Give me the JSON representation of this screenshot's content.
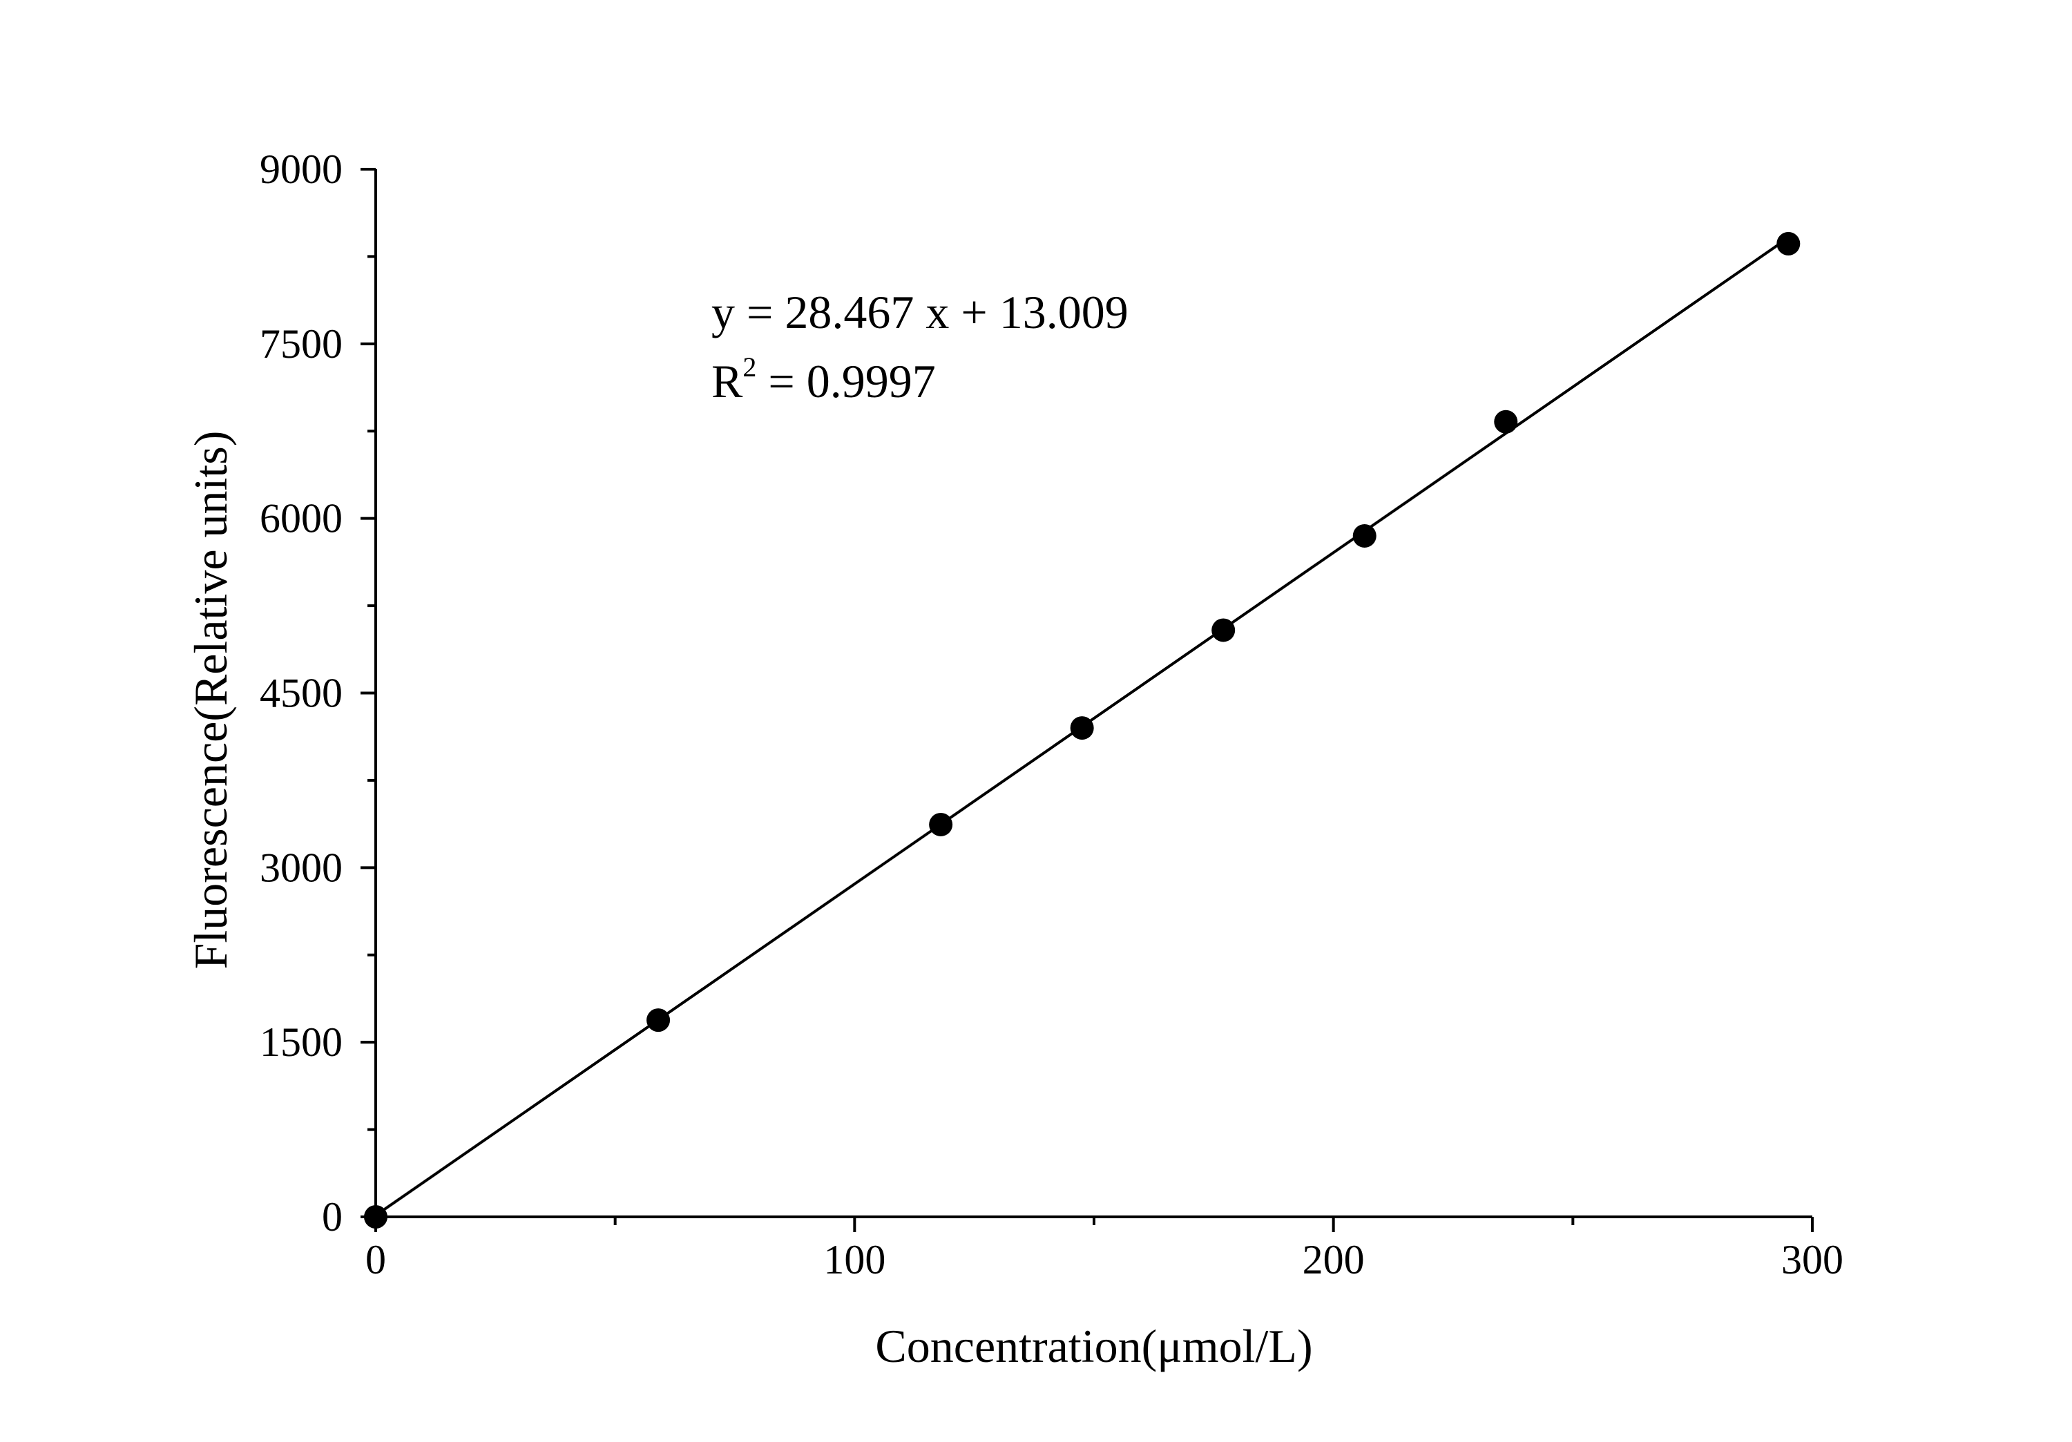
{
  "chart_data": {
    "type": "scatter",
    "title": "",
    "xlabel": "Concentration(μmol/L)",
    "ylabel": "Fluorescence(Relative units)",
    "xlim": [
      0,
      300
    ],
    "ylim": [
      0,
      9000
    ],
    "x_ticks": [
      0,
      100,
      200,
      300
    ],
    "x_tick_labels": [
      "0",
      "100",
      "200",
      "300"
    ],
    "y_ticks": [
      0,
      1500,
      3000,
      4500,
      6000,
      7500,
      9000
    ],
    "y_tick_labels": [
      "0",
      "1500",
      "3000",
      "4500",
      "6000",
      "7500",
      "9000"
    ],
    "grid": false,
    "legend": "none",
    "series": [
      {
        "marker": "filled-circle",
        "color": "#000000",
        "x": [
          0,
          59,
          118,
          147.5,
          177,
          206.5,
          236,
          295
        ],
        "y": [
          0,
          1690,
          3370,
          4200,
          5040,
          5850,
          6830,
          8360
        ]
      }
    ],
    "fit_line": {
      "slope": 28.467,
      "intercept": 13.009,
      "x_range": [
        0,
        295
      ],
      "color": "#000000"
    },
    "annotations": {
      "equation": "y = 28.467 x + 13.009",
      "r2_label": "R",
      "r2_exponent": "2",
      "r2_value": " = 0.9997"
    }
  }
}
